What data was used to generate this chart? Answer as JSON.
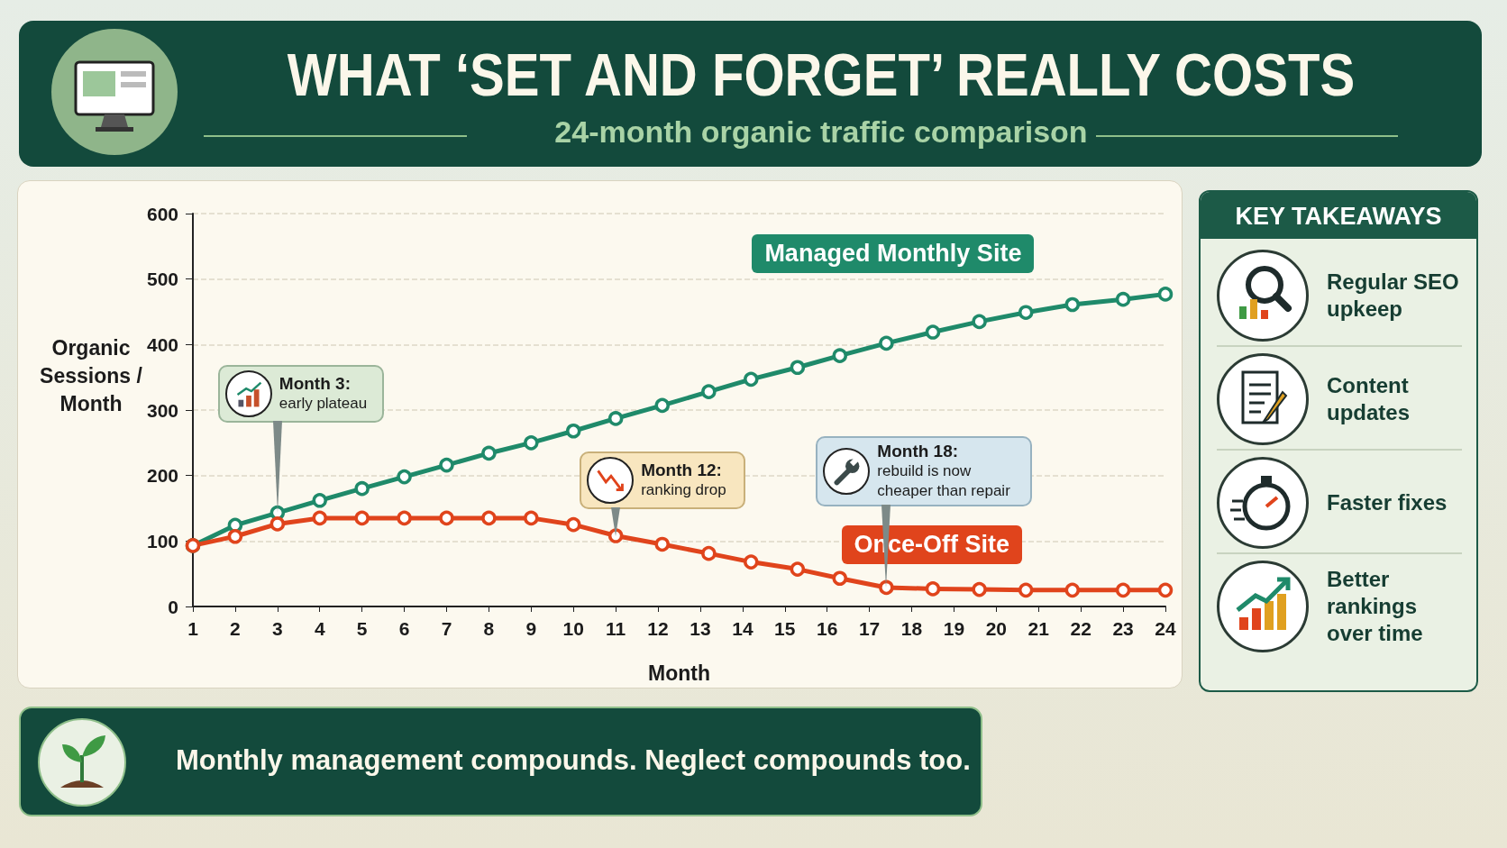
{
  "chart_data": [
    {
      "type": "line",
      "title": "WHAT ‘SET AND FORGET’ REALLY COSTS",
      "subtitle": "24-month organic traffic comparison",
      "xlabel": "Month",
      "ylabel": "Organic Sessions / Month",
      "x": [
        1,
        2,
        3,
        4,
        5,
        6,
        7,
        8,
        9,
        10,
        11,
        12.1,
        13.2,
        14.2,
        15.3,
        16.3,
        17.4,
        18.5,
        19.6,
        20.7,
        21.8,
        23.0,
        24.0
      ],
      "series": [
        {
          "name": "Managed Monthly Site",
          "color": "#1f8a6a",
          "values": [
            93,
            124,
            143,
            162,
            180,
            198,
            216,
            234,
            250,
            268,
            287,
            307,
            328,
            347,
            365,
            383,
            402,
            419,
            435,
            449,
            461,
            469,
            477
          ]
        },
        {
          "name": "Once-Off Site",
          "color": "#e0441c",
          "values": [
            93,
            107,
            126,
            135,
            135,
            135,
            135,
            135,
            135,
            125,
            108,
            95,
            81,
            68,
            57,
            43,
            29,
            27,
            26,
            25,
            25,
            25,
            25
          ]
        }
      ],
      "xlim": [
        1,
        24
      ],
      "xticks": [
        1,
        2,
        3,
        4,
        5,
        6,
        7,
        8,
        9,
        10,
        11,
        12,
        13,
        14,
        15,
        16,
        17,
        18,
        19,
        20,
        21,
        22,
        23,
        24
      ],
      "ylim": [
        0,
        600
      ],
      "yticks": [
        0,
        100,
        200,
        300,
        400,
        500,
        600
      ],
      "grid": "y",
      "marker": "circle",
      "line_style": "solid",
      "annotations": [
        {
          "text": "Month 3: early plateau",
          "x": 3,
          "y": 143
        },
        {
          "text": "Month 12: ranking drop",
          "x": 11,
          "y": 108
        },
        {
          "text": "Month 18: rebuild is now cheaper than repair",
          "x": 17.4,
          "y": 29
        },
        "Monthly management compounds. Neglect compounds too."
      ]
    },
    {
      "type": "other",
      "title": "KEY TAKEAWAYS",
      "annotations": [
        "Regular SEO upkeep",
        "Content updates",
        "Faster fixes",
        "Better rankings over time"
      ]
    }
  ]
}
